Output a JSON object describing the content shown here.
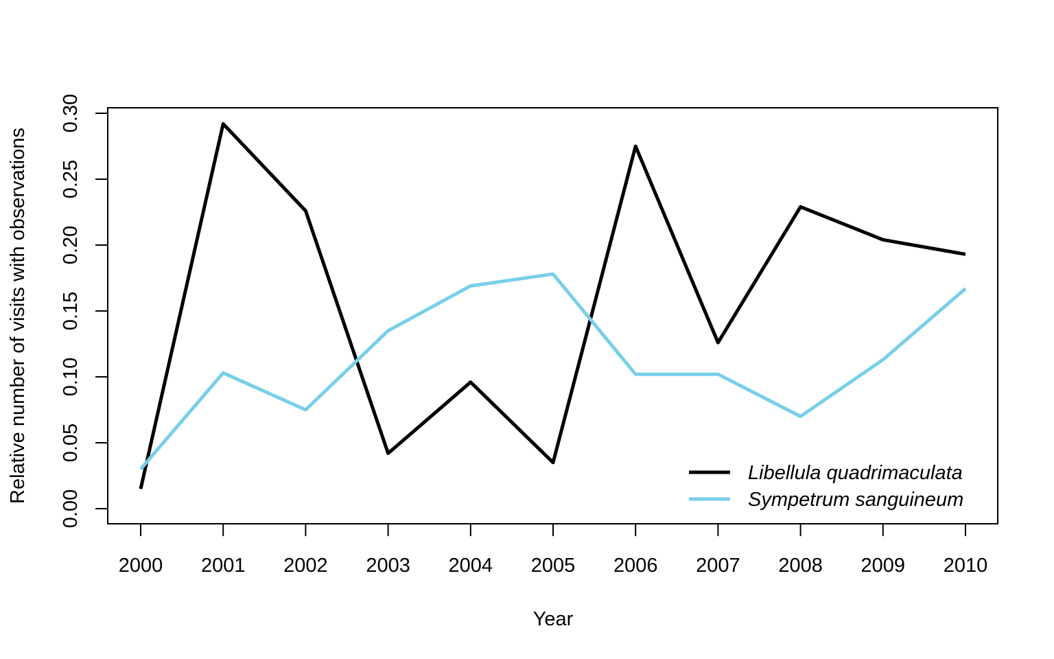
{
  "chart_data": {
    "type": "line",
    "title": "",
    "xlabel": "Year",
    "ylabel": "Relative number of visits with observations",
    "x": [
      2000,
      2001,
      2002,
      2003,
      2004,
      2005,
      2006,
      2007,
      2008,
      2009,
      2010
    ],
    "x_tick_labels": [
      "2000",
      "2001",
      "2002",
      "2003",
      "2004",
      "2005",
      "2006",
      "2007",
      "2008",
      "2009",
      "2010"
    ],
    "y_ticks": [
      0.0,
      0.05,
      0.1,
      0.15,
      0.2,
      0.25,
      0.3
    ],
    "y_tick_labels": [
      "0.00",
      "0.05",
      "0.10",
      "0.15",
      "0.20",
      "0.25",
      "0.30"
    ],
    "ylim": [
      -0.011,
      0.304
    ],
    "grid": false,
    "legend_position": "bottom-right",
    "series": [
      {
        "name": "Libellula quadrimaculata",
        "color": "#000000",
        "values": [
          0.015,
          0.292,
          0.226,
          0.042,
          0.096,
          0.035,
          0.275,
          0.126,
          0.229,
          0.204,
          0.193
        ]
      },
      {
        "name": "Sympetrum sanguineum",
        "color": "#78cfe8",
        "values": [
          0.03,
          0.103,
          0.075,
          0.135,
          0.169,
          0.178,
          0.102,
          0.102,
          0.07,
          0.113,
          0.167
        ]
      }
    ]
  }
}
